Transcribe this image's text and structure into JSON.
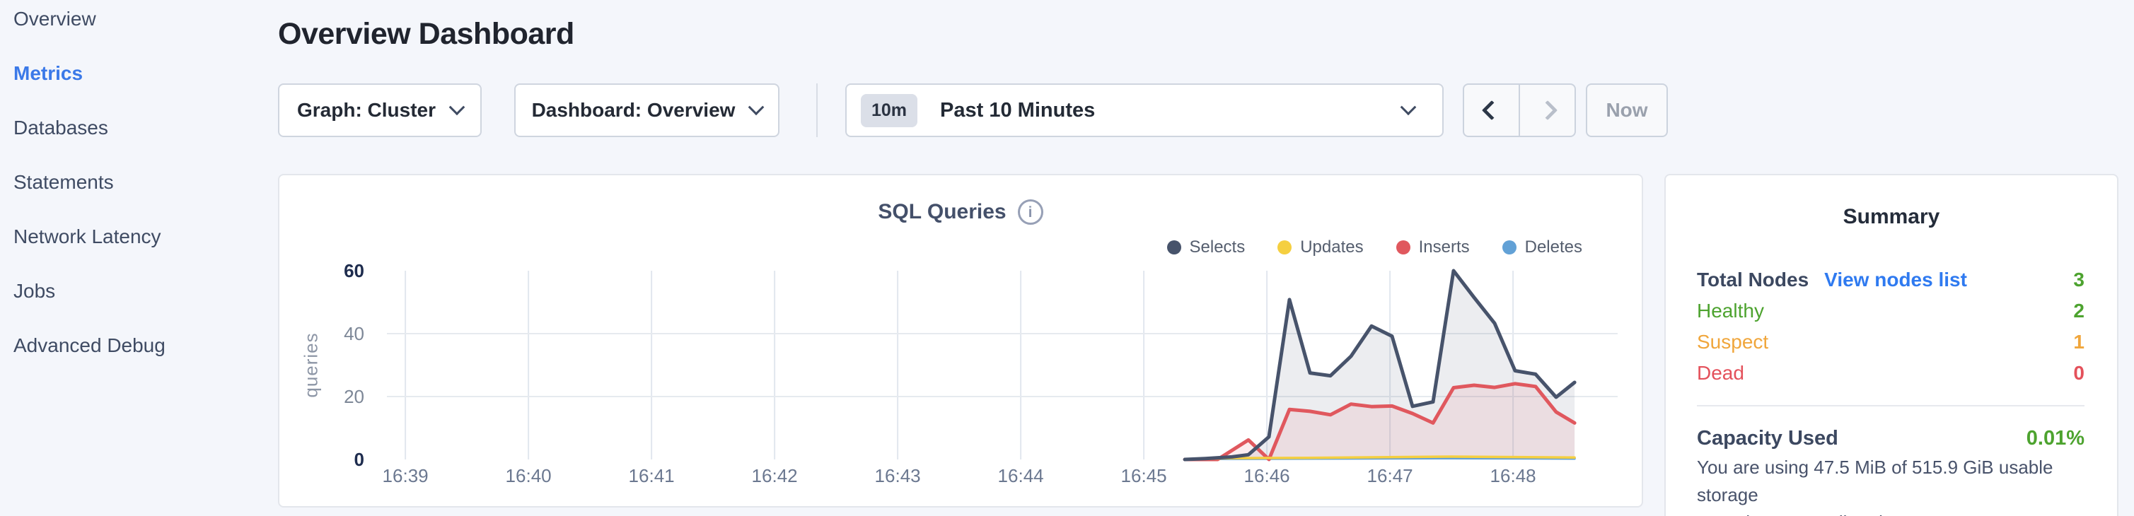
{
  "sidebar": {
    "items": [
      {
        "label": "Overview",
        "active": false
      },
      {
        "label": "Metrics",
        "active": true
      },
      {
        "label": "Databases",
        "active": false
      },
      {
        "label": "Statements",
        "active": false
      },
      {
        "label": "Network Latency",
        "active": false
      },
      {
        "label": "Jobs",
        "active": false
      },
      {
        "label": "Advanced Debug",
        "active": false
      }
    ]
  },
  "header": {
    "title": "Overview Dashboard"
  },
  "toolbar": {
    "graph_dropdown": {
      "label": "Graph: Cluster"
    },
    "dashboard_dropdown": {
      "label": "Dashboard: Overview"
    },
    "time_selector": {
      "badge": "10m",
      "value": "Past 10 Minutes"
    },
    "now_button": "Now"
  },
  "chart_data": {
    "type": "area",
    "title": "SQL Queries",
    "ylabel": "queries",
    "ylim": [
      0,
      60
    ],
    "y_ticks": [
      0,
      20,
      40,
      60
    ],
    "x_window_seconds": [
      -9,
      591
    ],
    "grid": true,
    "legend_position": "top-right",
    "x_ticks": [
      {
        "t": 0,
        "label": "16:39"
      },
      {
        "t": 60,
        "label": "16:40"
      },
      {
        "t": 120,
        "label": "16:41"
      },
      {
        "t": 180,
        "label": "16:42"
      },
      {
        "t": 240,
        "label": "16:43"
      },
      {
        "t": 300,
        "label": "16:44"
      },
      {
        "t": 360,
        "label": "16:45"
      },
      {
        "t": 420,
        "label": "16:46"
      },
      {
        "t": 480,
        "label": "16:47"
      },
      {
        "t": 540,
        "label": "16:48"
      }
    ],
    "series": [
      {
        "name": "Selects",
        "color": "#47536b",
        "fill": "rgba(71,83,107,0.10)",
        "stroke_width": 5,
        "points": [
          [
            380,
            0
          ],
          [
            390,
            0.3
          ],
          [
            403,
            0.8
          ],
          [
            411,
            1.5
          ],
          [
            421,
            7.2
          ],
          [
            431,
            50.8
          ],
          [
            441,
            27.5
          ],
          [
            451,
            26.6
          ],
          [
            461,
            32.8
          ],
          [
            471,
            42.4
          ],
          [
            481,
            39.2
          ],
          [
            491,
            16.9
          ],
          [
            501,
            18.3
          ],
          [
            511,
            60
          ],
          [
            521,
            51.5
          ],
          [
            531,
            43.3
          ],
          [
            541,
            28.2
          ],
          [
            551,
            27.1
          ],
          [
            561,
            19.8
          ],
          [
            570,
            24.5
          ]
        ]
      },
      {
        "name": "Updates",
        "color": "#f5cf40",
        "fill": null,
        "stroke_width": 3.5,
        "points": [
          [
            380,
            0
          ],
          [
            400,
            0.4
          ],
          [
            440,
            0.5
          ],
          [
            510,
            0.9
          ],
          [
            570,
            0.6
          ]
        ]
      },
      {
        "name": "Inserts",
        "color": "#e0585e",
        "fill": "rgba(224,88,94,0.10)",
        "stroke_width": 5,
        "points": [
          [
            380,
            0
          ],
          [
            396,
            0
          ],
          [
            411,
            6.2
          ],
          [
            421,
            0
          ],
          [
            431,
            15.9
          ],
          [
            441,
            15.3
          ],
          [
            451,
            14.2
          ],
          [
            461,
            17.6
          ],
          [
            471,
            16.8
          ],
          [
            481,
            17
          ],
          [
            491,
            14.6
          ],
          [
            501,
            11.6
          ],
          [
            511,
            22.8
          ],
          [
            521,
            23.6
          ],
          [
            531,
            22.9
          ],
          [
            541,
            24.1
          ],
          [
            551,
            23.2
          ],
          [
            561,
            15.1
          ],
          [
            570,
            11.6
          ]
        ]
      },
      {
        "name": "Deletes",
        "color": "#62a1d6",
        "fill": null,
        "stroke_width": 3.5,
        "points": [
          [
            380,
            0
          ],
          [
            400,
            0.2
          ],
          [
            510,
            0.4
          ],
          [
            570,
            0.3
          ]
        ]
      }
    ]
  },
  "summary": {
    "title": "Summary",
    "total_nodes": {
      "label": "Total Nodes",
      "link": "View nodes list",
      "value": "3",
      "color": "#4da32f"
    },
    "statuses": [
      {
        "label": "Healthy",
        "value": "2",
        "color": "#4da32f"
      },
      {
        "label": "Suspect",
        "value": "1",
        "color": "#f0a63c"
      },
      {
        "label": "Dead",
        "value": "0",
        "color": "#e4515b"
      }
    ],
    "capacity": {
      "label": "Capacity Used",
      "value": "0.01%",
      "value_color": "#4da32f",
      "desc_line1": "You are using 47.5 MiB of 515.9 GiB usable storage",
      "desc_line2": "capacity across all nodes."
    }
  },
  "colors": {
    "accent_blue": "#3b79e8",
    "link_blue": "#2f7af0",
    "healthy_green": "#4da32f",
    "suspect_orange": "#f0a63c",
    "dead_red": "#e4515b",
    "page_background": "#f4f6fb"
  },
  "icons": {
    "info": "i"
  }
}
